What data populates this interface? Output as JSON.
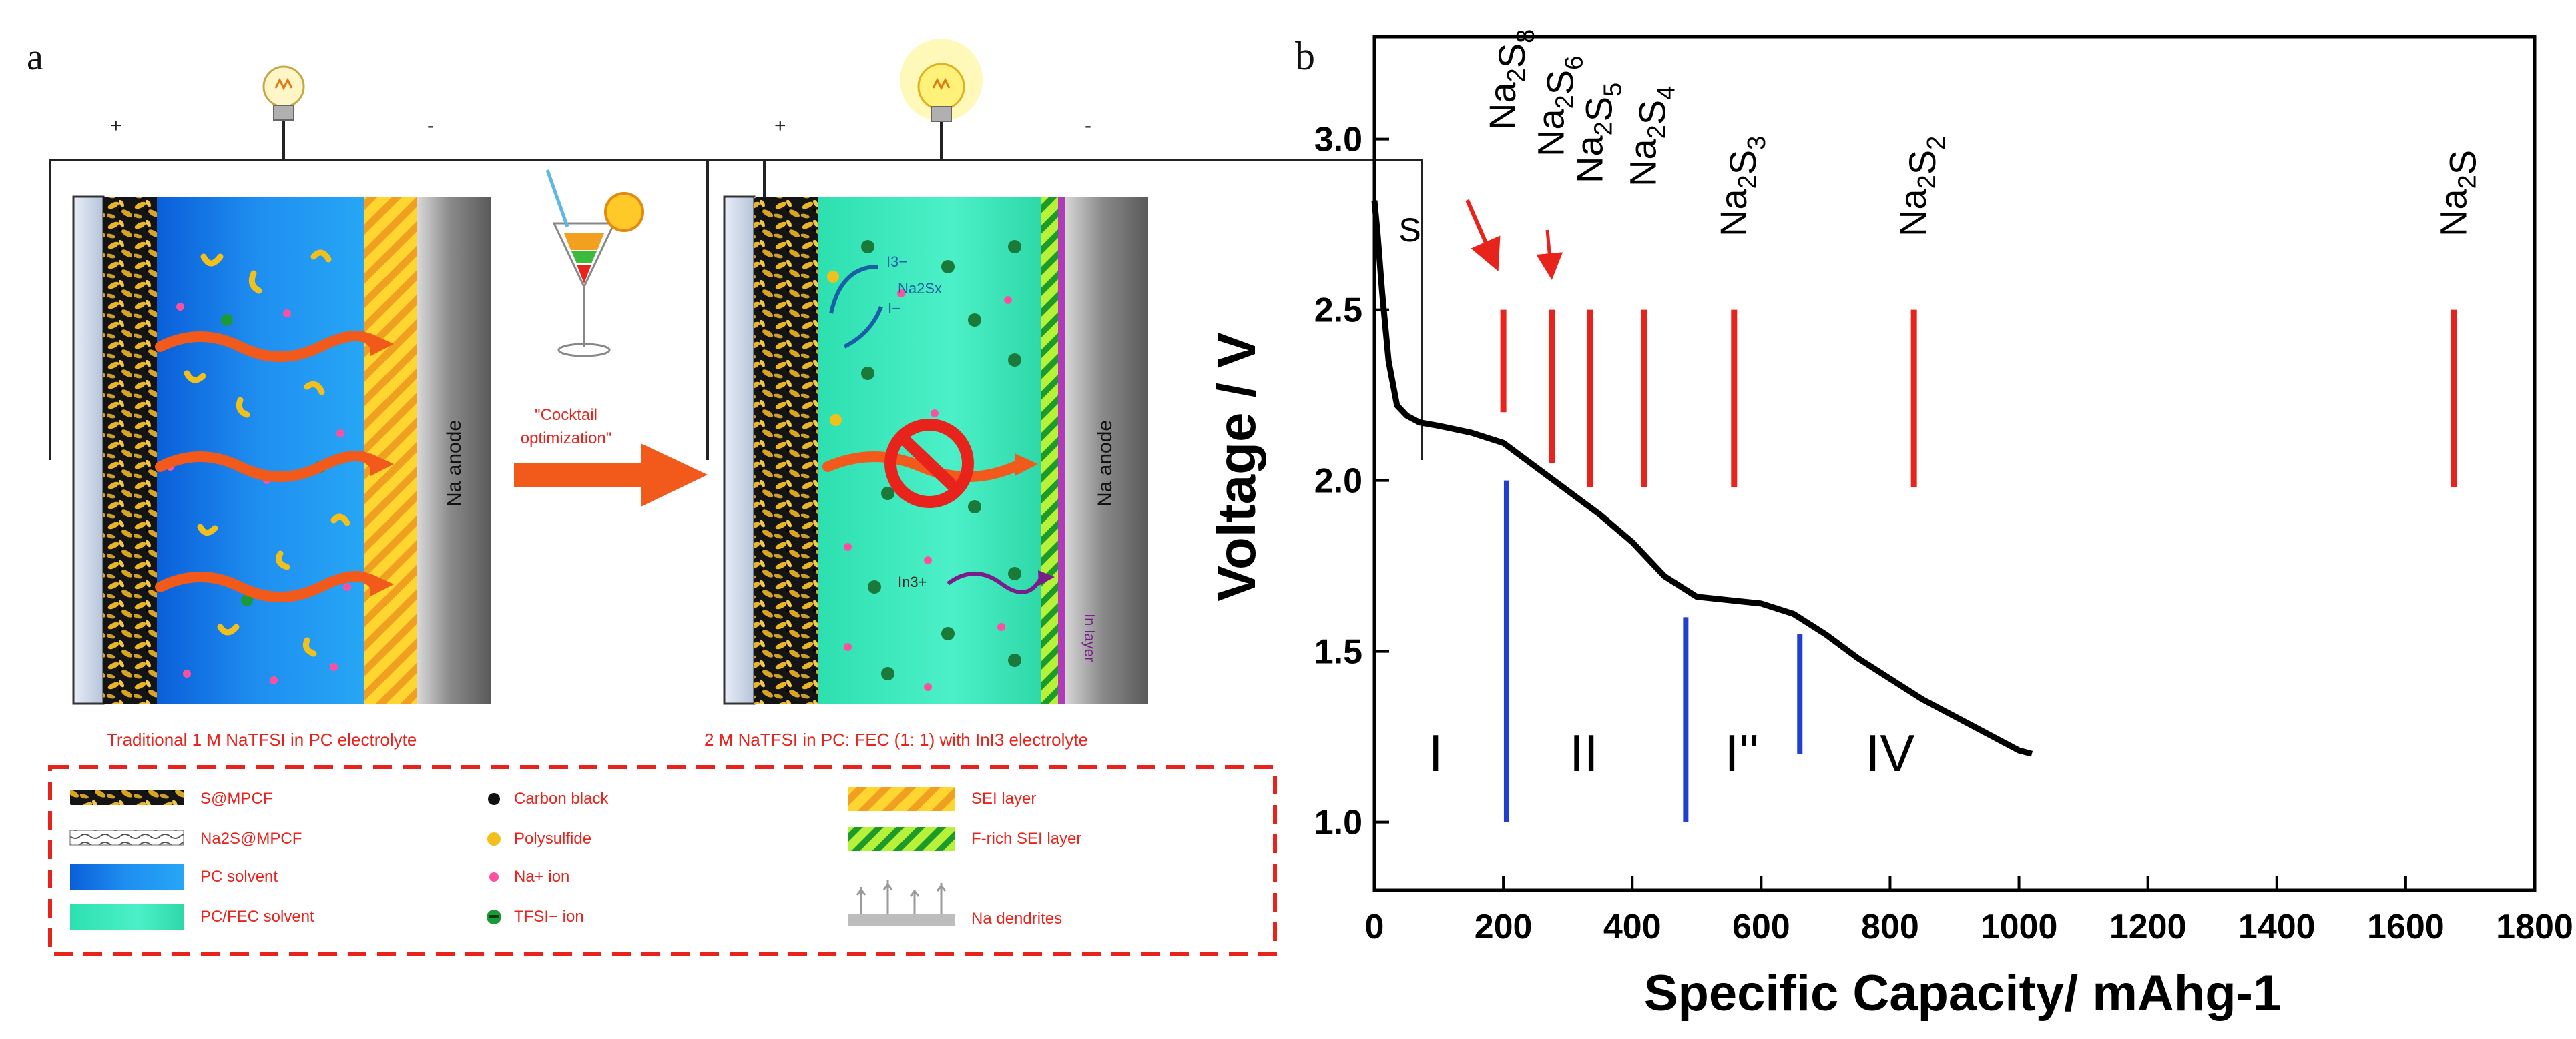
{
  "panel_a": {
    "label": "a",
    "cell_left": {
      "plus": "+",
      "minus": "-",
      "anode": "Na anode",
      "caption": "Traditional 1 M NaTFSI in PC electrolyte"
    },
    "cell_right": {
      "plus": "+",
      "minus": "-",
      "anode": "Na anode",
      "caption": "2 M NaTFSI in PC: FEC (1: 1) with InI3 electrolyte",
      "labels": {
        "i3": "I3−",
        "i": "I−",
        "na2sx": "Na2Sx",
        "sodium": "Na",
        "in3": "In3+",
        "in_layer": "In layer"
      }
    },
    "arrow_text_1": "\"Cocktail",
    "arrow_text_2": "optimization\"",
    "legend": [
      {
        "label": "S@MPCF"
      },
      {
        "label": "Na2S@MPCF"
      },
      {
        "label": "PC solvent"
      },
      {
        "label": "PC/FEC solvent"
      },
      {
        "label": "Carbon black"
      },
      {
        "label": "Polysulfide"
      },
      {
        "label": "Na+ ion"
      },
      {
        "label": "TFSI− ion"
      },
      {
        "label": "SEI layer"
      },
      {
        "label": "F-rich SEI layer"
      },
      {
        "label": "Na dendrites"
      }
    ],
    "colors": {
      "blue_electrolyte": "#1f7fe6",
      "green_electrolyte": "#3ee6b4",
      "red_text": "#e8231c",
      "legend_border": "#e8231c",
      "anode_gray": "#8c8c8c",
      "flow_arrow": "#f25a1c"
    }
  },
  "panel_b": {
    "label": "b",
    "chart_data": {
      "type": "line",
      "xlabel": "Specific Capacity/ mAhg-1",
      "ylabel": "Voltage / V",
      "xlim": [
        0,
        1800
      ],
      "ylim": [
        0.8,
        3.3
      ],
      "x_ticks": [
        0,
        200,
        400,
        600,
        800,
        1000,
        1200,
        1400,
        1600,
        1800
      ],
      "y_ticks": [
        1.0,
        1.5,
        2.0,
        2.5,
        3.0
      ],
      "series": [
        {
          "x": [
            0,
            5,
            12,
            22,
            35,
            50,
            70,
            100,
            150,
            200,
            250,
            300,
            350,
            400,
            450,
            500,
            550,
            600,
            650,
            700,
            750,
            800,
            850,
            900,
            950,
            1000,
            1020
          ],
          "y": [
            2.82,
            2.72,
            2.55,
            2.35,
            2.22,
            2.19,
            2.17,
            2.16,
            2.14,
            2.11,
            2.04,
            1.97,
            1.9,
            1.82,
            1.72,
            1.66,
            1.65,
            1.64,
            1.61,
            1.55,
            1.48,
            1.42,
            1.36,
            1.31,
            1.26,
            1.21,
            1.2
          ]
        }
      ],
      "red_markers": [
        {
          "x": 200,
          "y0": 2.2,
          "y1": 2.5,
          "label": "Na2S8"
        },
        {
          "x": 275,
          "y0": 2.05,
          "y1": 2.5,
          "label": "Na2S6"
        },
        {
          "x": 335,
          "y0": 1.98,
          "y1": 2.5,
          "label": "Na2S5"
        },
        {
          "x": 418,
          "y0": 1.98,
          "y1": 2.5,
          "label": "Na2S4"
        },
        {
          "x": 558,
          "y0": 1.98,
          "y1": 2.5,
          "label": "Na2S3"
        },
        {
          "x": 837,
          "y0": 1.98,
          "y1": 2.5,
          "label": "Na2S2"
        },
        {
          "x": 1675,
          "y0": 1.98,
          "y1": 2.5,
          "label": "Na2S"
        }
      ],
      "blue_markers": [
        {
          "x": 205,
          "y0": 1.0,
          "y1": 2.0
        },
        {
          "x": 483,
          "y0": 1.0,
          "y1": 1.6
        },
        {
          "x": 660,
          "y0": 1.2,
          "y1": 1.55
        }
      ],
      "annotations": [
        {
          "text": "S",
          "x": 55,
          "y": 2.7
        },
        {
          "text": "I",
          "x": 95,
          "y": 1.15
        },
        {
          "text": "II",
          "x": 325,
          "y": 1.15
        },
        {
          "text": "I''",
          "x": 570,
          "y": 1.15
        },
        {
          "text": "IV",
          "x": 800,
          "y": 1.15
        }
      ]
    }
  }
}
